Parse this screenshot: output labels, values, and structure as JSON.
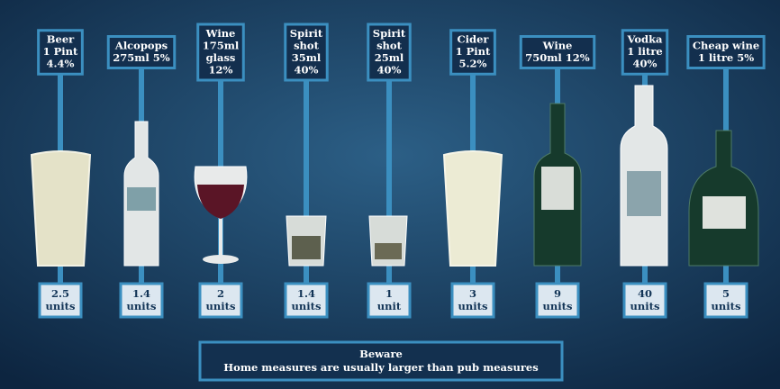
{
  "drinks": [
    {
      "label": [
        "Beer",
        "1 Pint",
        "4.4%"
      ],
      "units": 2.5,
      "unit_text": "units"
    },
    {
      "label": [
        "Alcopops",
        "275ml 5%"
      ],
      "units": 1.4,
      "unit_text": "units"
    },
    {
      "label": [
        "Wine",
        "175ml",
        "glass",
        "12%"
      ],
      "units": 2,
      "unit_text": "units"
    },
    {
      "label": [
        "Spirit",
        "shot",
        "35ml",
        "40%"
      ],
      "units": 1.4,
      "unit_text": "units"
    },
    {
      "label": [
        "Spirit",
        "shot",
        "25ml",
        "40%"
      ],
      "units": 1,
      "unit_text": "unit"
    },
    {
      "label": [
        "Cider",
        "1 Pint",
        "5.2%"
      ],
      "units": 3,
      "unit_text": "units"
    },
    {
      "label": [
        "Wine",
        "750ml 12%"
      ],
      "units": 9,
      "unit_text": "units"
    },
    {
      "label": [
        "Vodka",
        "1 litre",
        "40%"
      ],
      "units": 40,
      "unit_text": "units"
    },
    {
      "label": [
        "Cheap wine",
        "1 litre 5%"
      ],
      "units": 5,
      "unit_text": "units"
    }
  ],
  "note": {
    "title": "Beware",
    "text": "Home measures are usually larger than pub measures"
  }
}
